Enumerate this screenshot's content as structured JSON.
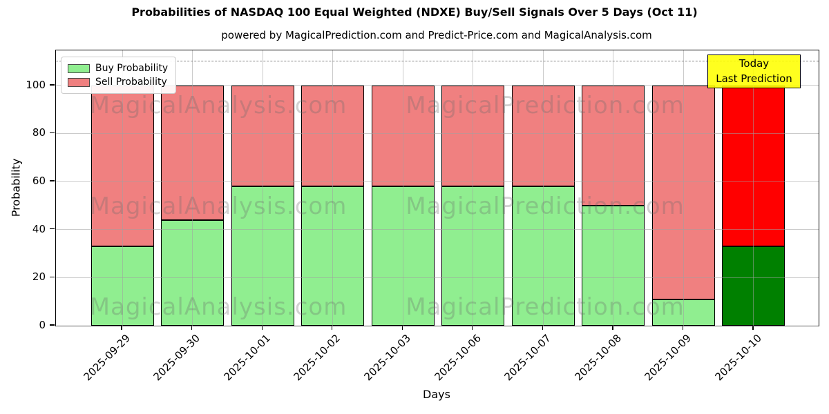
{
  "title": "Probabilities of NASDAQ 100 Equal Weighted (NDXE) Buy/Sell Signals Over 5 Days (Oct 11)",
  "subtitle": "powered by MagicalPrediction.com and Predict-Price.com and MagicalAnalysis.com",
  "legend": [
    {
      "label": "Buy Probability",
      "color": "#90ee90"
    },
    {
      "label": "Sell Probability",
      "color": "#f08080"
    }
  ],
  "annotation": {
    "line1": "Today",
    "line2": "Last Prediction",
    "bg_color": "#ffff00"
  },
  "watermarks": {
    "left": "MagicalAnalysis.com",
    "right": "MagicalPrediction.com"
  },
  "chart_data": {
    "type": "bar",
    "stacked": true,
    "title": "Probabilities of NASDAQ 100 Equal Weighted (NDXE) Buy/Sell Signals Over 5 Days (Oct 11)",
    "xlabel": "Days",
    "ylabel": "Probability",
    "categories": [
      "2025-09-29",
      "2025-09-30",
      "2025-10-01",
      "2025-10-02",
      "2025-10-03",
      "2025-10-06",
      "2025-10-07",
      "2025-10-08",
      "2025-10-09",
      "2025-10-10"
    ],
    "series": [
      {
        "name": "Buy Probability",
        "color": "#90ee90",
        "last_bar_color": "#008000",
        "values": [
          33,
          44,
          58,
          58,
          58,
          58,
          58,
          50,
          11,
          33
        ]
      },
      {
        "name": "Sell Probability",
        "color": "#f08080",
        "last_bar_color": "#ff0000",
        "values": [
          67,
          56,
          42,
          42,
          42,
          42,
          42,
          50,
          89,
          67
        ]
      }
    ],
    "yticks": [
      0,
      20,
      40,
      60,
      80,
      100
    ],
    "ylim": [
      0,
      114.6
    ],
    "hline": {
      "y": 110,
      "style": "dashed",
      "color": "#7f7f7f"
    },
    "grid": true,
    "bar_edge_color": "#000000",
    "legend_position": "upper left"
  }
}
